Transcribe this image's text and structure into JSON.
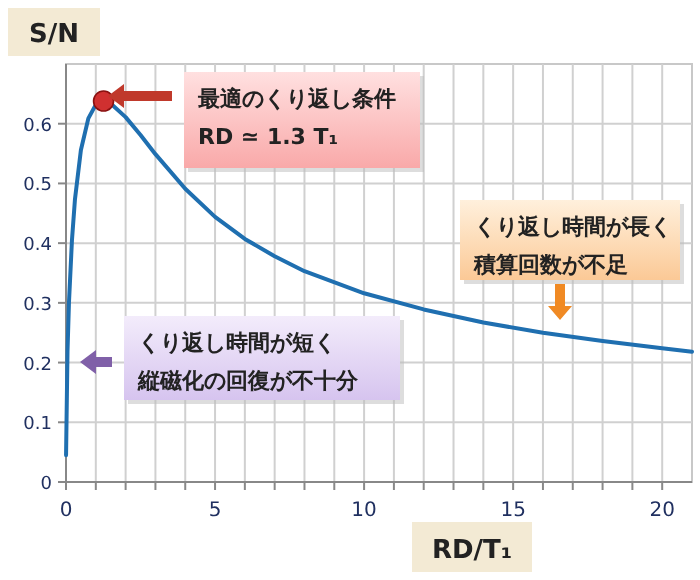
{
  "chart_data": {
    "type": "line",
    "xlabel": "RD/T₁",
    "ylabel": "S/N",
    "xlim": [
      0,
      21
    ],
    "ylim": [
      0,
      0.7
    ],
    "xticks": [
      0,
      {
        "value": 1,
        "label": null
      },
      {
        "value": 2,
        "label": null
      },
      {
        "value": 3,
        "label": null
      },
      {
        "value": 4,
        "label": null
      },
      5,
      {
        "value": 6,
        "label": null
      },
      {
        "value": 7,
        "label": null
      },
      {
        "value": 8,
        "label": null
      },
      {
        "value": 9,
        "label": null
      },
      10,
      {
        "value": 11,
        "label": null
      },
      {
        "value": 12,
        "label": null
      },
      {
        "value": 13,
        "label": null
      },
      {
        "value": 14,
        "label": null
      },
      15,
      {
        "value": 16,
        "label": null
      },
      {
        "value": 17,
        "label": null
      },
      {
        "value": 18,
        "label": null
      },
      {
        "value": 19,
        "label": null
      },
      20
    ],
    "yticks": [
      0,
      0.1,
      0.2,
      0.3,
      0.4,
      0.5,
      0.6
    ],
    "grid": true,
    "series": [
      {
        "color": "#1f6fb0",
        "x": [
          0.002,
          0.05,
          0.1,
          0.2,
          0.3,
          0.5,
          0.75,
          1.0,
          1.26,
          1.5,
          2,
          2.5,
          3,
          4,
          5,
          6,
          7,
          8,
          10,
          12,
          14,
          16,
          18,
          20,
          21
        ],
        "values": [
          0.045,
          0.218,
          0.301,
          0.405,
          0.473,
          0.556,
          0.609,
          0.632,
          0.638,
          0.634,
          0.611,
          0.581,
          0.549,
          0.491,
          0.444,
          0.407,
          0.378,
          0.353,
          0.316,
          0.289,
          0.267,
          0.25,
          0.236,
          0.224,
          0.218
        ]
      },
      {
        "type": "scatter",
        "color": "#d03030",
        "marker": "circle",
        "x": [
          1.26
        ],
        "values": [
          0.638
        ]
      }
    ],
    "annotations": [
      "最適のくり返し条件",
      "RD ≃ 1.3 T₁",
      "くり返し時間が長く",
      "積算回数が不足",
      "くり返し時間が短く",
      "縦磁化の回復が不十分"
    ]
  }
}
